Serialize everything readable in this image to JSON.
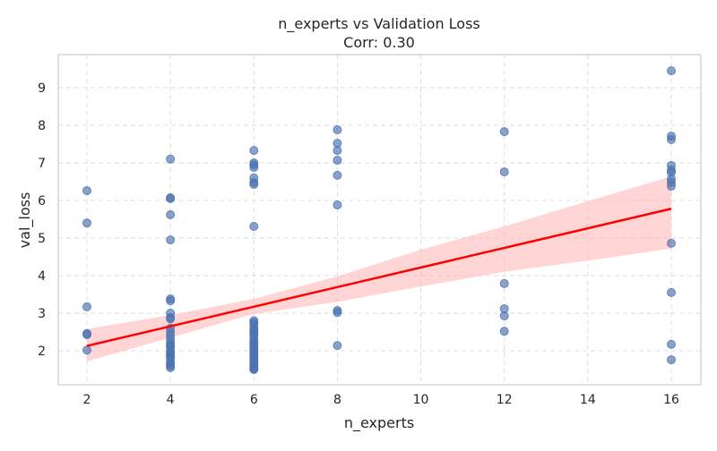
{
  "chart_data": {
    "type": "scatter",
    "title": "n_experts vs Validation Loss",
    "subtitle": "Corr: 0.30",
    "xlabel": "n_experts",
    "ylabel": "val_loss",
    "xlim": [
      1.4,
      16.7
    ],
    "ylim": [
      1.1,
      9.85
    ],
    "xticks": [
      2,
      4,
      6,
      8,
      10,
      12,
      14,
      16
    ],
    "yticks": [
      2,
      3,
      4,
      5,
      6,
      7,
      8,
      9
    ],
    "grid": true,
    "point_color": "#4c72b0",
    "line_color": "#ff0000",
    "band_color": "#ffb3b3",
    "points": [
      {
        "x": 2,
        "y": [
          6.26,
          5.4,
          3.17,
          2.46,
          2.43,
          2.02
        ]
      },
      {
        "x": 4,
        "y": [
          7.1,
          6.07,
          6.05,
          5.62,
          4.95,
          3.38,
          3.33,
          3.0,
          2.88,
          2.85,
          2.6,
          2.5,
          2.4,
          2.3,
          2.2,
          2.15,
          2.1,
          2.0,
          1.95,
          1.9,
          1.85,
          1.8,
          1.7,
          1.65,
          1.6,
          1.55
        ]
      },
      {
        "x": 6,
        "y": [
          7.33,
          7.0,
          6.95,
          6.88,
          6.6,
          6.48,
          6.43,
          5.31,
          2.8,
          2.75,
          2.7,
          2.6,
          2.55,
          2.5,
          2.45,
          2.4,
          2.3,
          2.25,
          2.2,
          2.15,
          2.1,
          2.05,
          2.0,
          1.95,
          1.9,
          1.85,
          1.8,
          1.75,
          1.7,
          1.65,
          1.6,
          1.55,
          1.52,
          1.5
        ]
      },
      {
        "x": 8,
        "y": [
          7.88,
          7.52,
          7.33,
          7.07,
          6.67,
          5.88,
          3.07,
          3.02,
          2.14
        ]
      },
      {
        "x": 12,
        "y": [
          7.83,
          6.76,
          3.79,
          3.12,
          2.93,
          2.52
        ]
      },
      {
        "x": 16,
        "y": [
          9.45,
          7.71,
          7.62,
          6.93,
          6.81,
          6.74,
          6.57,
          6.48,
          6.38,
          4.86,
          3.55,
          2.17,
          1.76
        ]
      }
    ],
    "regression": {
      "x": [
        2,
        16
      ],
      "y": [
        2.13,
        5.78
      ]
    },
    "ci_band": {
      "x": [
        2,
        4,
        6,
        8,
        10,
        12,
        14,
        16
      ],
      "lower": [
        1.72,
        2.35,
        2.98,
        3.3,
        3.71,
        4.1,
        4.4,
        4.72
      ],
      "upper": [
        2.58,
        2.95,
        3.38,
        3.98,
        4.69,
        5.31,
        5.98,
        6.64
      ]
    }
  }
}
